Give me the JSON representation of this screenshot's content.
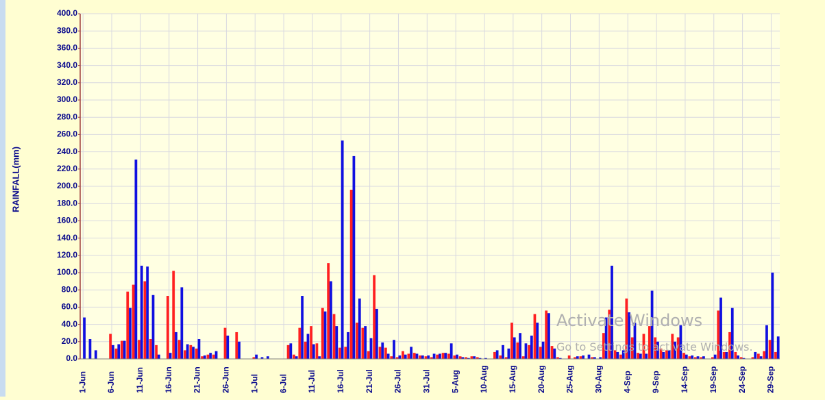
{
  "chart_data": {
    "type": "bar",
    "y_label": "RAINFALL(mm)",
    "categories": [
      "1-Jun",
      null,
      null,
      null,
      null,
      "6-Jun",
      null,
      null,
      null,
      null,
      "11-Jun",
      null,
      null,
      null,
      null,
      "16-Jun",
      null,
      null,
      null,
      null,
      "21-Jun",
      null,
      null,
      null,
      null,
      "26-Jun",
      null,
      null,
      null,
      null,
      "1-Jul",
      null,
      null,
      null,
      null,
      "6-Jul",
      null,
      null,
      null,
      null,
      "11-Jul",
      null,
      null,
      null,
      null,
      "16-Jul",
      null,
      null,
      null,
      null,
      "21-Jul",
      null,
      null,
      null,
      null,
      "26-Jul",
      null,
      null,
      null,
      null,
      "31-Jul",
      null,
      null,
      null,
      null,
      "5-Aug",
      null,
      null,
      null,
      null,
      "10-Aug",
      null,
      null,
      null,
      null,
      "15-Aug",
      null,
      null,
      null,
      null,
      "20-Aug",
      null,
      null,
      null,
      null,
      "25-Aug",
      null,
      null,
      null,
      null,
      "30-Aug",
      null,
      null,
      null,
      null,
      "4-Sep",
      null,
      null,
      null,
      null,
      "9-Sep",
      null,
      null,
      null,
      null,
      "14-Sep",
      null,
      null,
      null,
      null,
      "19-Sep",
      null,
      null,
      null,
      null,
      "24-Sep",
      null,
      null,
      null,
      null,
      "29-Sep",
      null
    ],
    "series": [
      {
        "color": "#ff2020",
        "values": [
          0,
          0,
          0,
          0,
          0,
          29,
          12,
          21,
          78,
          86,
          22,
          90,
          23,
          16,
          0,
          73,
          102,
          22,
          10,
          16,
          12,
          3,
          5,
          5,
          0,
          36,
          0,
          31,
          0,
          0,
          2,
          0,
          0,
          0,
          0,
          0,
          16,
          5,
          36,
          20,
          38,
          18,
          59,
          111,
          52,
          13,
          14,
          196,
          42,
          36,
          9,
          97,
          14,
          13,
          3,
          2,
          9,
          6,
          7,
          4,
          3,
          2,
          5,
          7,
          6,
          4,
          3,
          2,
          3,
          2,
          0,
          0,
          8,
          4,
          2,
          42,
          19,
          3,
          16,
          52,
          14,
          56,
          15,
          2,
          0,
          4,
          2,
          3,
          0,
          2,
          0,
          30,
          57,
          10,
          5,
          70,
          25,
          7,
          29,
          38,
          25,
          12,
          10,
          29,
          25,
          7,
          3,
          2,
          2,
          0,
          2,
          56,
          8,
          31,
          8,
          2,
          0,
          2,
          6,
          9,
          22,
          8
        ]
      },
      {
        "color": "#1010e0",
        "values": [
          48,
          23,
          10,
          0,
          0,
          16,
          17,
          21,
          59,
          231,
          108,
          107,
          74,
          5,
          0,
          7,
          31,
          83,
          17,
          14,
          23,
          4,
          7,
          9,
          0,
          27,
          0,
          20,
          0,
          0,
          5,
          2,
          3,
          0,
          0,
          0,
          18,
          3,
          73,
          29,
          17,
          3,
          55,
          90,
          38,
          253,
          31,
          235,
          70,
          38,
          24,
          58,
          19,
          6,
          22,
          4,
          5,
          14,
          6,
          4,
          4,
          6,
          6,
          7,
          18,
          5,
          2,
          1,
          3,
          1,
          1,
          0,
          10,
          16,
          12,
          25,
          30,
          18,
          27,
          42,
          20,
          53,
          12,
          1,
          0,
          0,
          3,
          4,
          5,
          2,
          2,
          48,
          108,
          8,
          10,
          54,
          42,
          6,
          6,
          79,
          20,
          8,
          10,
          20,
          39,
          5,
          4,
          3,
          3,
          0,
          5,
          71,
          8,
          59,
          4,
          1,
          0,
          8,
          3,
          39,
          100,
          26
        ]
      }
    ],
    "ylim": [
      0,
      400
    ],
    "yticks": [
      {
        "value": 0,
        "label": "0.0"
      },
      {
        "value": 20,
        "label": "20.0"
      },
      {
        "value": 40,
        "label": "40.0"
      },
      {
        "value": 60,
        "label": "60.0"
      },
      {
        "value": 80,
        "label": "80.0"
      },
      {
        "value": 100,
        "label": "100.0"
      },
      {
        "value": 120,
        "label": "120.0"
      },
      {
        "value": 140,
        "label": "140.0"
      },
      {
        "value": 160,
        "label": "160.0"
      },
      {
        "value": 180,
        "label": "180.0"
      },
      {
        "value": 200,
        "label": "200.0"
      },
      {
        "value": 220,
        "label": "220.0"
      },
      {
        "value": 240,
        "label": "240.0"
      },
      {
        "value": 260,
        "label": "260.0"
      },
      {
        "value": 280,
        "label": "280.0"
      },
      {
        "value": 300,
        "label": "300.0"
      },
      {
        "value": 320,
        "label": "320.0"
      },
      {
        "value": 340,
        "label": "340.0"
      },
      {
        "value": 360,
        "label": "360.0"
      },
      {
        "value": 380,
        "label": "380.0"
      },
      {
        "value": 400,
        "label": "400.0"
      }
    ],
    "grid": true
  },
  "watermark": {
    "title": "Activate Windows",
    "subtitle": "Go to Settings to activate Windows."
  }
}
